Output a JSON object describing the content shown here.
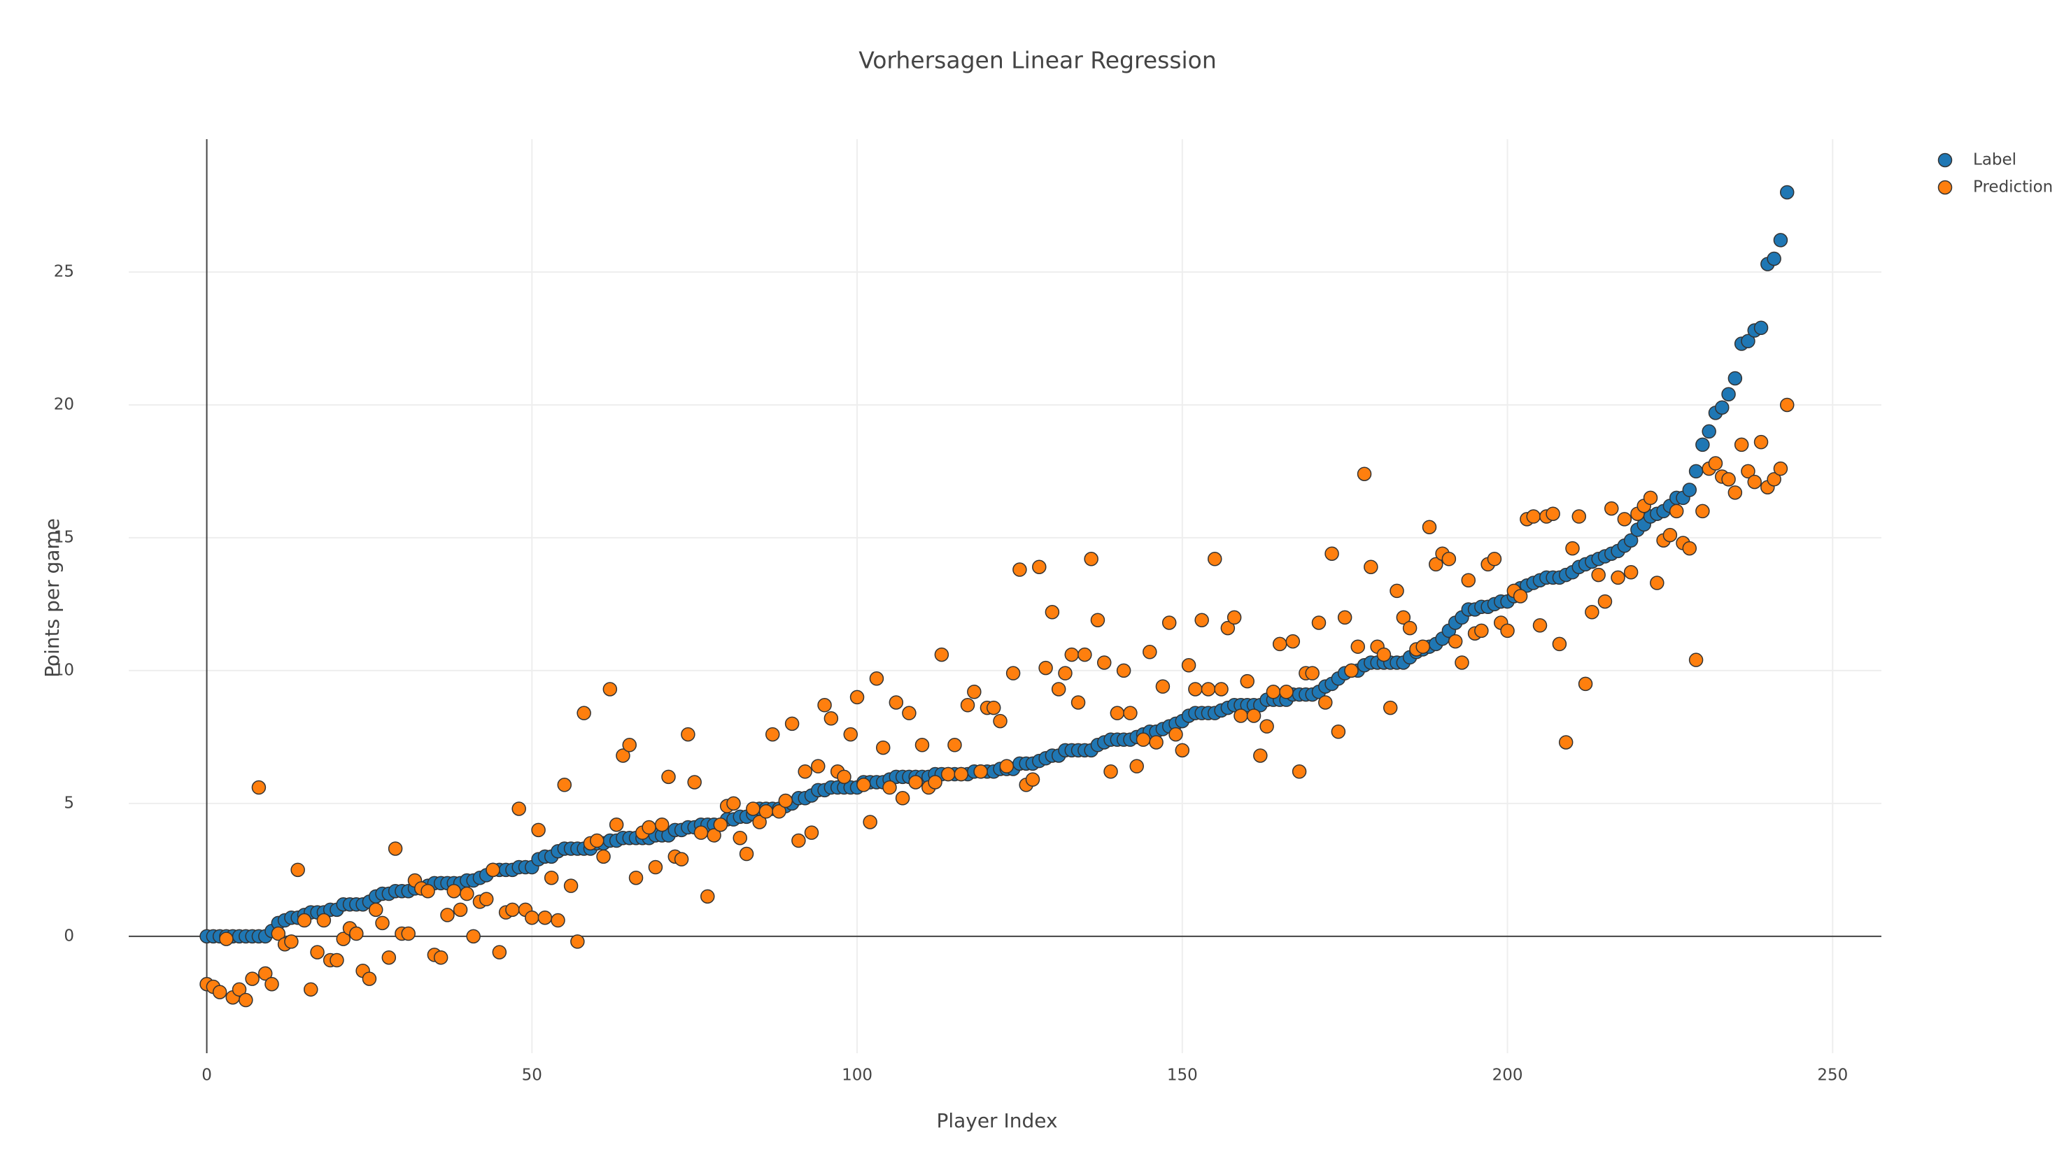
{
  "chart_data": {
    "type": "scatter",
    "title": "Vorhersagen Linear Regression",
    "x_label": "Player Index",
    "y_label": "Points per game",
    "xlim": [
      -12,
      257.5
    ],
    "ylim": [
      -4.4,
      30
    ],
    "xticks": [
      0,
      50,
      100,
      150,
      200,
      250
    ],
    "yticks": [
      0,
      5,
      10,
      15,
      20,
      25
    ],
    "grid": true,
    "legend": "top-right",
    "x": [
      0,
      1,
      2,
      3,
      4,
      5,
      6,
      7,
      8,
      9,
      10,
      11,
      12,
      13,
      14,
      15,
      16,
      17,
      18,
      19,
      20,
      21,
      22,
      23,
      24,
      25,
      26,
      27,
      28,
      29,
      30,
      31,
      32,
      33,
      34,
      35,
      36,
      37,
      38,
      39,
      40,
      41,
      42,
      43,
      44,
      45,
      46,
      47,
      48,
      49,
      50,
      51,
      52,
      53,
      54,
      55,
      56,
      57,
      58,
      59,
      60,
      61,
      62,
      63,
      64,
      65,
      66,
      67,
      68,
      69,
      70,
      71,
      72,
      73,
      74,
      75,
      76,
      77,
      78,
      79,
      80,
      81,
      82,
      83,
      84,
      85,
      86,
      87,
      88,
      89,
      90,
      91,
      92,
      93,
      94,
      95,
      96,
      97,
      98,
      99,
      100,
      101,
      102,
      103,
      104,
      105,
      106,
      107,
      108,
      109,
      110,
      111,
      112,
      113,
      114,
      115,
      116,
      117,
      118,
      119,
      120,
      121,
      122,
      123,
      124,
      125,
      126,
      127,
      128,
      129,
      130,
      131,
      132,
      133,
      134,
      135,
      136,
      137,
      138,
      139,
      140,
      141,
      142,
      143,
      144,
      145,
      146,
      147,
      148,
      149,
      150,
      151,
      152,
      153,
      154,
      155,
      156,
      157,
      158,
      159,
      160,
      161,
      162,
      163,
      164,
      165,
      166,
      167,
      168,
      169,
      170,
      171,
      172,
      173,
      174,
      175,
      176,
      177,
      178,
      179,
      180,
      181,
      182,
      183,
      184,
      185,
      186,
      187,
      188,
      189,
      190,
      191,
      192,
      193,
      194,
      195,
      196,
      197,
      198,
      199,
      200,
      201,
      202,
      203,
      204,
      205,
      206,
      207,
      208,
      209,
      210,
      211,
      212,
      213,
      214,
      215,
      216,
      217,
      218,
      219,
      220,
      221,
      222,
      223,
      224,
      225,
      226,
      227,
      228,
      229,
      230,
      231,
      232,
      233,
      234,
      235,
      236,
      237,
      238,
      239,
      240,
      241,
      242,
      243
    ],
    "series": [
      {
        "name": "Label",
        "color": "#1f77b4",
        "values": [
          0,
          0,
          0,
          0,
          0,
          0,
          0,
          0,
          0,
          0,
          0.2,
          0.5,
          0.6,
          0.7,
          0.7,
          0.8,
          0.9,
          0.9,
          0.9,
          1.0,
          1.0,
          1.2,
          1.2,
          1.2,
          1.2,
          1.3,
          1.5,
          1.6,
          1.6,
          1.7,
          1.7,
          1.7,
          1.8,
          1.8,
          1.9,
          2.0,
          2.0,
          2.0,
          2.0,
          2.0,
          2.1,
          2.1,
          2.2,
          2.3,
          2.5,
          2.5,
          2.5,
          2.5,
          2.6,
          2.6,
          2.6,
          2.9,
          3.0,
          3.0,
          3.2,
          3.3,
          3.3,
          3.3,
          3.3,
          3.3,
          3.5,
          3.5,
          3.6,
          3.6,
          3.7,
          3.7,
          3.7,
          3.7,
          3.7,
          3.8,
          3.8,
          3.8,
          4.0,
          4.0,
          4.1,
          4.1,
          4.2,
          4.2,
          4.2,
          4.2,
          4.4,
          4.4,
          4.5,
          4.5,
          4.6,
          4.8,
          4.8,
          4.8,
          4.8,
          4.9,
          5.0,
          5.2,
          5.2,
          5.3,
          5.5,
          5.5,
          5.6,
          5.6,
          5.6,
          5.6,
          5.6,
          5.8,
          5.8,
          5.8,
          5.8,
          5.9,
          6.0,
          6.0,
          6.0,
          6.0,
          6.0,
          6.0,
          6.1,
          6.1,
          6.1,
          6.1,
          6.1,
          6.1,
          6.2,
          6.2,
          6.2,
          6.2,
          6.3,
          6.3,
          6.3,
          6.5,
          6.5,
          6.5,
          6.6,
          6.7,
          6.8,
          6.8,
          7.0,
          7.0,
          7.0,
          7.0,
          7.0,
          7.2,
          7.3,
          7.4,
          7.4,
          7.4,
          7.4,
          7.5,
          7.6,
          7.7,
          7.7,
          7.8,
          7.9,
          8.0,
          8.1,
          8.3,
          8.4,
          8.4,
          8.4,
          8.4,
          8.5,
          8.6,
          8.7,
          8.7,
          8.7,
          8.7,
          8.7,
          8.9,
          8.9,
          8.9,
          8.9,
          9.1,
          9.1,
          9.1,
          9.1,
          9.2,
          9.4,
          9.5,
          9.7,
          9.9,
          10.0,
          10.0,
          10.2,
          10.3,
          10.3,
          10.3,
          10.3,
          10.3,
          10.3,
          10.5,
          10.7,
          10.8,
          10.9,
          11.0,
          11.2,
          11.5,
          11.8,
          12.0,
          12.3,
          12.3,
          12.4,
          12.4,
          12.5,
          12.6,
          12.6,
          12.8,
          13.1,
          13.2,
          13.3,
          13.4,
          13.5,
          13.5,
          13.5,
          13.6,
          13.7,
          13.9,
          14.0,
          14.1,
          14.2,
          14.3,
          14.4,
          14.5,
          14.7,
          14.9,
          15.3,
          15.5,
          15.8,
          15.9,
          16.0,
          16.2,
          16.5,
          16.5,
          16.8,
          17.5,
          18.5,
          19.0,
          19.7,
          19.9,
          20.4,
          21.0,
          22.3,
          22.4,
          22.8,
          22.9,
          25.3,
          25.5,
          26.2,
          28.0
        ]
      },
      {
        "name": "Prediction",
        "color": "#ff7f0e",
        "values": [
          -1.8,
          -1.9,
          -2.1,
          -0.1,
          -2.3,
          -2.0,
          -2.4,
          -1.6,
          5.6,
          -1.4,
          -1.8,
          0.1,
          -0.3,
          -0.2,
          2.5,
          0.6,
          -2.0,
          -0.6,
          0.6,
          -0.9,
          -0.9,
          -0.1,
          0.3,
          0.1,
          -1.3,
          -1.6,
          1.0,
          0.5,
          -0.8,
          3.3,
          0.1,
          0.1,
          2.1,
          1.8,
          1.7,
          -0.7,
          -0.8,
          0.8,
          1.7,
          1.0,
          1.6,
          0.0,
          1.3,
          1.4,
          2.5,
          -0.6,
          0.9,
          1.0,
          4.8,
          1.0,
          0.7,
          4.0,
          0.7,
          2.2,
          0.6,
          5.7,
          1.9,
          -0.2,
          8.4,
          3.5,
          3.6,
          3.0,
          9.3,
          4.2,
          6.8,
          7.2,
          2.2,
          3.9,
          4.1,
          2.6,
          4.2,
          6.0,
          3.0,
          2.9,
          7.6,
          5.8,
          3.9,
          1.5,
          3.8,
          4.2,
          4.9,
          5.0,
          3.7,
          3.1,
          4.8,
          4.3,
          4.7,
          7.6,
          4.7,
          5.1,
          8.0,
          3.6,
          6.2,
          3.9,
          6.4,
          8.7,
          8.2,
          6.2,
          6.0,
          7.6,
          9.0,
          5.7,
          4.3,
          9.7,
          7.1,
          5.6,
          8.8,
          5.2,
          8.4,
          5.8,
          7.2,
          5.6,
          5.8,
          10.6,
          6.1,
          7.2,
          6.1,
          8.7,
          9.2,
          6.2,
          8.6,
          8.6,
          8.1,
          6.4,
          9.9,
          13.8,
          5.7,
          5.9,
          13.9,
          10.1,
          12.2,
          9.3,
          9.9,
          10.6,
          8.8,
          10.6,
          14.2,
          11.9,
          10.3,
          6.2,
          8.4,
          10.0,
          8.4,
          6.4,
          7.4,
          10.7,
          7.3,
          9.4,
          11.8,
          7.6,
          7.0,
          10.2,
          9.3,
          11.9,
          9.3,
          14.2,
          9.3,
          11.6,
          12.0,
          8.3,
          9.6,
          8.3,
          6.8,
          7.9,
          9.2,
          11.0,
          9.2,
          11.1,
          6.2,
          9.9,
          9.9,
          11.8,
          8.8,
          14.4,
          7.7,
          12.0,
          10.0,
          10.9,
          17.4,
          13.9,
          10.9,
          10.6,
          8.6,
          13.0,
          12.0,
          11.6,
          10.8,
          10.9,
          15.4,
          14.0,
          14.4,
          14.2,
          11.1,
          10.3,
          13.4,
          11.4,
          11.5,
          14.0,
          14.2,
          11.8,
          11.5,
          13.0,
          12.8,
          15.7,
          15.8,
          11.7,
          15.8,
          15.9,
          11.0,
          7.3,
          14.6,
          15.8,
          9.5,
          12.2,
          13.6,
          12.6,
          16.1,
          13.5,
          15.7,
          13.7,
          15.9,
          16.2,
          16.5,
          13.3,
          14.9,
          15.1,
          16.0,
          14.8,
          14.6,
          10.4,
          16.0,
          17.6,
          17.8,
          17.3,
          17.2,
          16.7,
          18.5,
          17.5,
          17.1,
          18.6,
          16.9,
          17.2,
          17.6,
          20.0
        ]
      }
    ]
  }
}
